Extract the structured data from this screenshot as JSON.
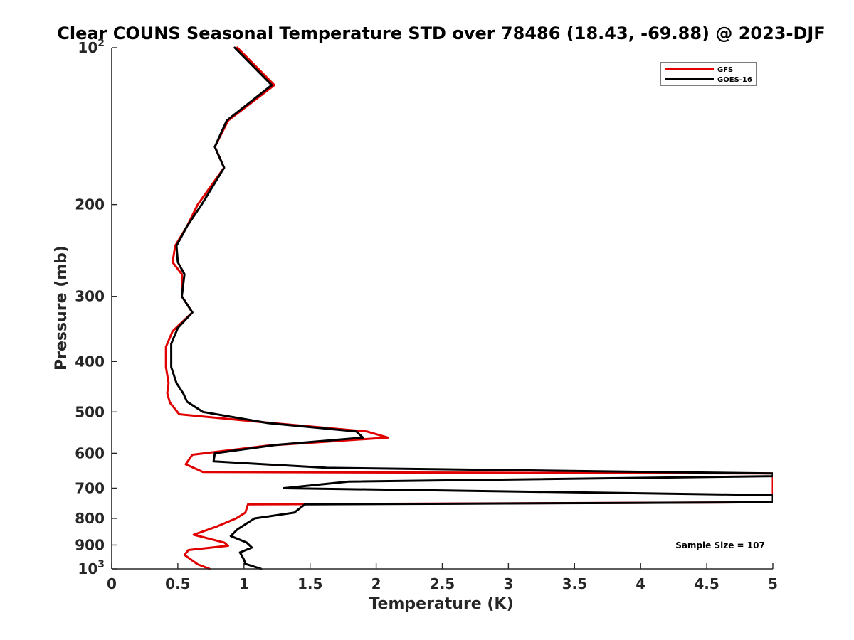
{
  "chart_data": {
    "type": "line",
    "title": "Clear COUNS Seasonal Temperature STD over 78486 (18.43, -69.88) @ 2023-DJF",
    "xlabel": "Temperature (K)",
    "ylabel": "Pressure (mb)",
    "xlim": [
      0,
      5
    ],
    "ylim": [
      100,
      1000
    ],
    "y_scale": "log",
    "y_reversed": true,
    "x_ticks": [
      {
        "value": 0,
        "label": "0"
      },
      {
        "value": 0.5,
        "label": "0.5"
      },
      {
        "value": 1,
        "label": "1"
      },
      {
        "value": 1.5,
        "label": "1.5"
      },
      {
        "value": 2,
        "label": "2"
      },
      {
        "value": 2.5,
        "label": "2.5"
      },
      {
        "value": 3,
        "label": "3"
      },
      {
        "value": 3.5,
        "label": "3.5"
      },
      {
        "value": 4,
        "label": "4"
      },
      {
        "value": 4.5,
        "label": "4.5"
      },
      {
        "value": 5,
        "label": "5"
      }
    ],
    "y_ticks": [
      {
        "value": 100,
        "base": "10",
        "exp": "2"
      },
      {
        "value": 200,
        "base": "200",
        "exp": ""
      },
      {
        "value": 300,
        "base": "300",
        "exp": ""
      },
      {
        "value": 400,
        "base": "400",
        "exp": ""
      },
      {
        "value": 500,
        "base": "500",
        "exp": ""
      },
      {
        "value": 600,
        "base": "600",
        "exp": ""
      },
      {
        "value": 700,
        "base": "700",
        "exp": ""
      },
      {
        "value": 800,
        "base": "800",
        "exp": ""
      },
      {
        "value": 900,
        "base": "900",
        "exp": ""
      },
      {
        "value": 1000,
        "base": "10",
        "exp": "3"
      }
    ],
    "grid": false,
    "legend_position": "top-right",
    "annotation": "Sample Size = 107",
    "series": [
      {
        "name": "GFS",
        "color": "#e00000",
        "points": [
          [
            0.95,
            100
          ],
          [
            1.23,
            118
          ],
          [
            0.88,
            138
          ],
          [
            0.78,
            155
          ],
          [
            0.85,
            170
          ],
          [
            0.65,
            200
          ],
          [
            0.57,
            220
          ],
          [
            0.48,
            240
          ],
          [
            0.46,
            258
          ],
          [
            0.53,
            272
          ],
          [
            0.53,
            300
          ],
          [
            0.61,
            322
          ],
          [
            0.46,
            350
          ],
          [
            0.41,
            375
          ],
          [
            0.41,
            410
          ],
          [
            0.43,
            440
          ],
          [
            0.42,
            460
          ],
          [
            0.44,
            480
          ],
          [
            0.51,
            505
          ],
          [
            1.21,
            525
          ],
          [
            1.93,
            545
          ],
          [
            2.09,
            560
          ],
          [
            1.18,
            580
          ],
          [
            0.61,
            604
          ],
          [
            0.56,
            630
          ],
          [
            0.69,
            652
          ],
          [
            5.0,
            656
          ],
          [
            5.0,
            668
          ],
          [
            5.0,
            680
          ],
          [
            5.0,
            700
          ],
          [
            5.0,
            722
          ],
          [
            5.0,
            745
          ],
          [
            1.03,
            752
          ],
          [
            1.01,
            780
          ],
          [
            0.94,
            800
          ],
          [
            0.79,
            830
          ],
          [
            0.62,
            860
          ],
          [
            0.85,
            890
          ],
          [
            0.88,
            903
          ],
          [
            0.58,
            920
          ],
          [
            0.55,
            940
          ],
          [
            0.6,
            960
          ],
          [
            0.65,
            980
          ],
          [
            0.74,
            1000
          ]
        ]
      },
      {
        "name": "GOES-16",
        "color": "#000000",
        "points": [
          [
            0.93,
            100
          ],
          [
            1.21,
            118
          ],
          [
            0.87,
            138
          ],
          [
            0.78,
            155
          ],
          [
            0.85,
            170
          ],
          [
            0.68,
            200
          ],
          [
            0.57,
            220
          ],
          [
            0.49,
            240
          ],
          [
            0.5,
            258
          ],
          [
            0.55,
            272
          ],
          [
            0.53,
            300
          ],
          [
            0.61,
            322
          ],
          [
            0.5,
            345
          ],
          [
            0.45,
            370
          ],
          [
            0.45,
            410
          ],
          [
            0.49,
            440
          ],
          [
            0.54,
            460
          ],
          [
            0.57,
            478
          ],
          [
            0.69,
            500
          ],
          [
            1.18,
            525
          ],
          [
            1.85,
            545
          ],
          [
            1.9,
            560
          ],
          [
            1.25,
            578
          ],
          [
            0.78,
            600
          ],
          [
            0.77,
            622
          ],
          [
            1.63,
            640
          ],
          [
            5.0,
            656
          ],
          [
            5.0,
            664
          ],
          [
            1.79,
            680
          ],
          [
            1.3,
            700
          ],
          [
            5.0,
            722
          ],
          [
            5.0,
            745
          ],
          [
            1.46,
            752
          ],
          [
            1.38,
            780
          ],
          [
            1.08,
            800
          ],
          [
            0.95,
            840
          ],
          [
            0.9,
            865
          ],
          [
            1.02,
            890
          ],
          [
            1.06,
            910
          ],
          [
            0.97,
            930
          ],
          [
            1.0,
            960
          ],
          [
            1.01,
            978
          ],
          [
            1.13,
            1000
          ]
        ]
      }
    ]
  }
}
